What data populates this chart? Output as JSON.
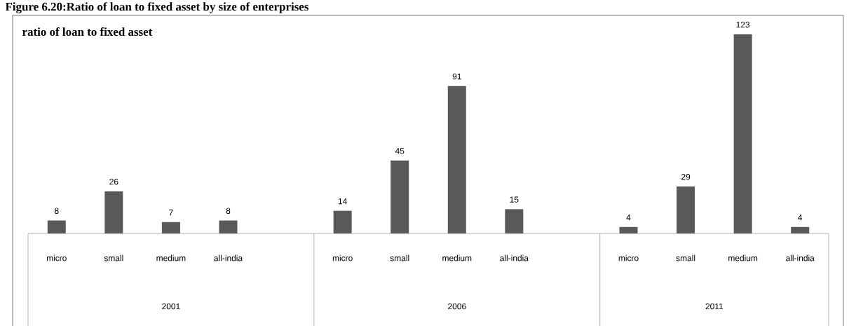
{
  "chart_data": {
    "type": "bar",
    "title": "Figure 6.20:Ratio of loan to fixed asset by size of enterprises",
    "subtitle": "ratio of loan to fixed asset",
    "categories": [
      "micro",
      "small",
      "medium",
      "all-india",
      null,
      "micro",
      "small",
      "medium",
      "all-india",
      null,
      "micro",
      "small",
      "medium",
      "all-india"
    ],
    "values": [
      8,
      26,
      7,
      8,
      null,
      14,
      45,
      91,
      15,
      null,
      4,
      29,
      123,
      4
    ],
    "color": "#595959",
    "annotations": [
      "2001",
      "2006",
      "2011"
    ],
    "data_labels": true
  }
}
